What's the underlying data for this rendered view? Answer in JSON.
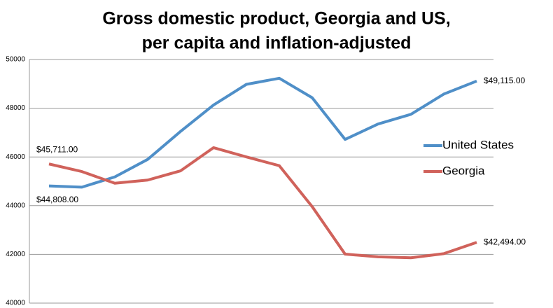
{
  "chart_data": {
    "type": "line",
    "title": [
      "Gross domestic product, Georgia and US,",
      "per capita and inflation-adjusted"
    ],
    "categories": [
      null,
      null,
      null,
      null,
      null,
      null,
      null,
      null,
      null,
      null,
      null,
      null,
      null,
      null
    ],
    "series": [
      {
        "name": "United States",
        "color": "#4f8fc8",
        "values": [
          44808,
          44760,
          45180,
          45900,
          47050,
          48130,
          48980,
          49230,
          48430,
          46720,
          47350,
          47750,
          48580,
          49115
        ],
        "value_labels": [
          "$44,808.00",
          null,
          null,
          null,
          null,
          null,
          null,
          null,
          null,
          null,
          null,
          null,
          null,
          "$49,115.00"
        ]
      },
      {
        "name": "Georgia",
        "color": "#d0625b",
        "values": [
          45711,
          45400,
          44920,
          45050,
          45430,
          46380,
          46000,
          45640,
          43960,
          42010,
          41900,
          41860,
          42030,
          42494
        ],
        "value_labels": [
          "$45,711.00",
          null,
          null,
          null,
          null,
          null,
          null,
          null,
          null,
          null,
          null,
          null,
          null,
          "$42,494.00"
        ]
      }
    ],
    "ylim": [
      40000,
      50000
    ],
    "yticks": [
      40000,
      42000,
      44000,
      46000,
      48000,
      50000
    ],
    "grid": true,
    "legend": "right"
  }
}
